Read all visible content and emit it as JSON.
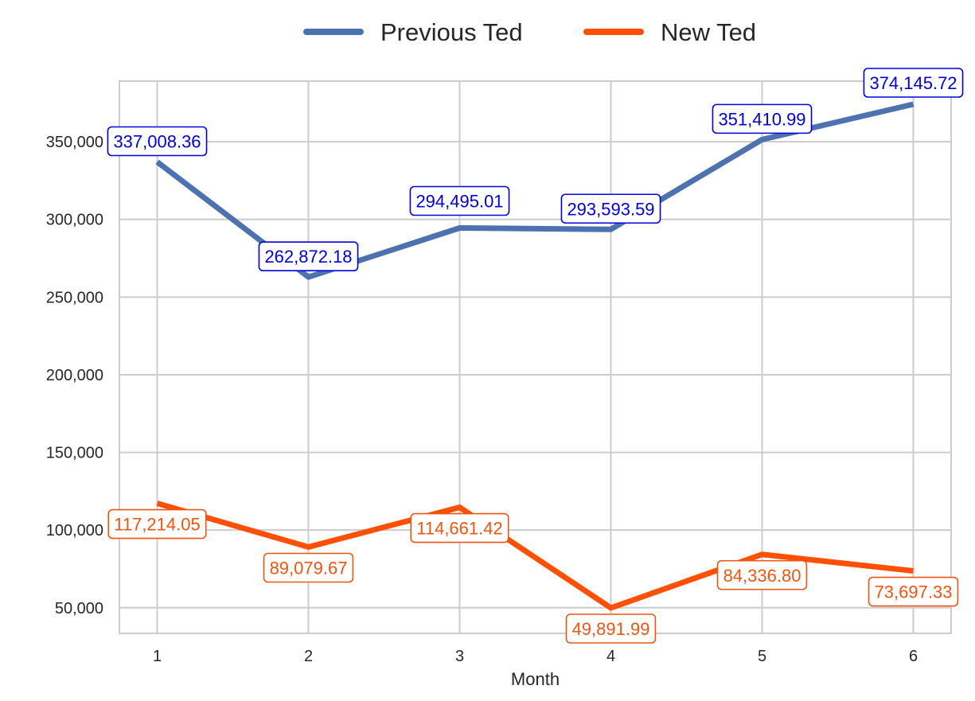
{
  "chart_data": {
    "type": "line",
    "title": "",
    "xlabel": "Month",
    "ylabel": "",
    "x": [
      1,
      2,
      3,
      4,
      5,
      6
    ],
    "x_ticks": [
      "1",
      "2",
      "3",
      "4",
      "5",
      "6"
    ],
    "xlim": [
      0.75,
      6.25
    ],
    "ylim": [
      33500,
      389000
    ],
    "y_ticks": [
      50000,
      100000,
      150000,
      200000,
      250000,
      300000,
      350000
    ],
    "y_tick_labels": [
      "50,000",
      "100,000",
      "150,000",
      "200,000",
      "250,000",
      "300,000",
      "350,000"
    ],
    "grid": true,
    "legend_position": "top-center",
    "series": [
      {
        "name": "Previous Ted",
        "color": "#4c72b0",
        "label_color": "#0000dd",
        "values": [
          337008.36,
          262872.18,
          294495.01,
          293593.59,
          351410.99,
          374145.72
        ],
        "labels": [
          "337,008.36",
          "262,872.18",
          "294,495.01",
          "293,593.59",
          "351,410.99",
          "374,145.72"
        ]
      },
      {
        "name": "New Ted",
        "color": "#ff5005",
        "label_color": "#ee5511",
        "values": [
          117214.05,
          89079.67,
          114661.42,
          49891.99,
          84336.8,
          73697.33
        ],
        "labels": [
          "117,214.05",
          "89,079.67",
          "114,661.42",
          "49,891.99",
          "84,336.80",
          "73,697.33"
        ]
      }
    ]
  }
}
